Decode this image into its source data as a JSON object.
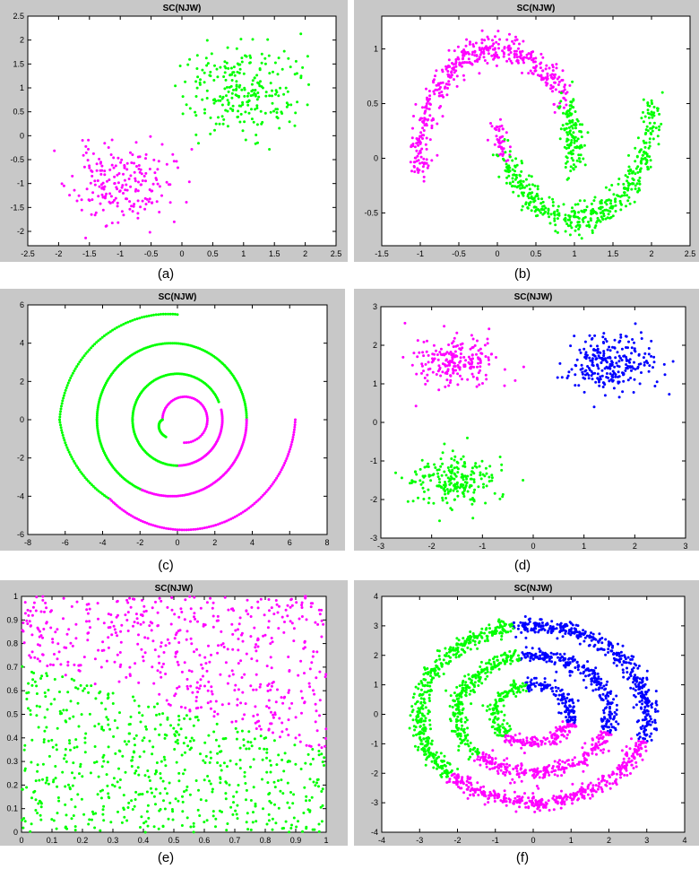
{
  "colors": {
    "magenta": "#ff00ff",
    "green": "#00ff00",
    "blue": "#0000ff",
    "frame_bg": "#c8c8c8",
    "plot_bg": "#ffffff"
  },
  "captions": {
    "a": "(a)",
    "b": "(b)",
    "c": "(c)",
    "d": "(d)",
    "e": "(e)",
    "f": "(f)"
  },
  "chart_data": [
    {
      "id": "a",
      "type": "scatter",
      "title": "SC(NJW)",
      "xlim": [
        -2.5,
        2.5
      ],
      "ylim": [
        -2.3,
        2.5
      ],
      "xticks": [
        "-2.5",
        "-2",
        "-1.5",
        "-1",
        "-0.5",
        "0",
        "0.5",
        "1",
        "1.5",
        "2",
        "2.5"
      ],
      "yticks": [
        "-2",
        "-1.5",
        "-1",
        "-0.5",
        "0",
        "0.5",
        "1",
        "1.5",
        "2",
        "2.5"
      ],
      "series": [
        {
          "color": "magenta",
          "gen": "gauss",
          "center": [
            -1.0,
            -1.0
          ],
          "spread": [
            0.4,
            0.4
          ],
          "count": 200,
          "seed": 11
        },
        {
          "color": "green",
          "gen": "gauss",
          "center": [
            1.0,
            0.95
          ],
          "spread": [
            0.45,
            0.45
          ],
          "count": 250,
          "seed": 12
        }
      ]
    },
    {
      "id": "b",
      "type": "scatter",
      "title": "SC(NJW)",
      "xlim": [
        -1.5,
        2.5
      ],
      "ylim": [
        -0.8,
        1.3
      ],
      "xticks": [
        "-1.5",
        "-1",
        "-0.5",
        "0",
        "0.5",
        "1",
        "1.5",
        "2",
        "2.5"
      ],
      "yticks": [
        "-0.5",
        "0",
        "0.5",
        "1"
      ],
      "series": [
        {
          "color": "magenta",
          "gen": "moon",
          "cx": 0,
          "cy": 0,
          "r": 1,
          "t0": 0.5,
          "t1": 3.3,
          "noise": 0.07,
          "count": 450,
          "seed": 21
        },
        {
          "color": "magenta",
          "gen": "moon",
          "cx": 1,
          "cy": 0.45,
          "r": 1,
          "t0": 3.3,
          "t1": 3.58,
          "noise": 0.05,
          "count": 45,
          "seed": 22
        },
        {
          "color": "green",
          "gen": "moon",
          "cx": 0,
          "cy": 0,
          "r": 1,
          "t0": -0.05,
          "t1": 0.5,
          "noise": 0.07,
          "count": 130,
          "seed": 23
        },
        {
          "color": "green",
          "gen": "moon",
          "cx": 1,
          "cy": 0.45,
          "r": 1,
          "t0": 3.58,
          "t1": 6.35,
          "noise": 0.07,
          "count": 450,
          "seed": 24
        }
      ]
    },
    {
      "id": "c",
      "type": "scatter",
      "title": "SC(NJW)",
      "xlim": [
        -8,
        8
      ],
      "ylim": [
        -6,
        6
      ],
      "xticks": [
        "-8",
        "-6",
        "-4",
        "-2",
        "0",
        "2",
        "4",
        "6",
        "8"
      ],
      "yticks": [
        "-6",
        "-4",
        "-2",
        "0",
        "2",
        "4",
        "6"
      ],
      "series": [
        {
          "color": "green",
          "gen": "arc",
          "cx": 0,
          "cy": 0,
          "r0": 5.5,
          "r1": 6.3,
          "t0": 1.5708,
          "t1": 3.1416,
          "count": 70
        },
        {
          "color": "green",
          "gen": "arc",
          "cx": 0,
          "cy": 0,
          "r0": 6.3,
          "r1": 5.5,
          "t0": 3.1416,
          "t1": 4.0,
          "count": 40
        },
        {
          "color": "magenta",
          "gen": "arc",
          "cx": 0,
          "cy": 0,
          "r0": 5.5,
          "r1": 6.3,
          "t0": 4.0,
          "t1": 6.2832,
          "count": 110
        },
        {
          "color": "green",
          "gen": "arc",
          "cx": -0.3,
          "cy": 0,
          "r0": 4.0,
          "r1": 4.0,
          "t0": 0.0,
          "t1": 3.1416,
          "count": 120
        },
        {
          "color": "green",
          "gen": "arc",
          "cx": -0.3,
          "cy": 0,
          "r0": 4.0,
          "r1": 4.0,
          "t0": 3.1416,
          "t1": 4.3,
          "count": 45
        },
        {
          "color": "magenta",
          "gen": "arc",
          "cx": -0.3,
          "cy": 0,
          "r0": 4.0,
          "r1": 4.0,
          "t0": 4.3,
          "t1": 6.2832,
          "count": 80
        },
        {
          "color": "green",
          "gen": "arc",
          "cx": 0,
          "cy": 0,
          "r0": 2.4,
          "r1": 2.4,
          "t0": 0.4,
          "t1": 3.1416,
          "count": 70
        },
        {
          "color": "magenta",
          "gen": "arc",
          "cx": 0,
          "cy": 0,
          "r0": 2.4,
          "r1": 2.4,
          "t0": 4.7,
          "t1": 6.5,
          "count": 50
        },
        {
          "color": "green",
          "gen": "arc",
          "cx": 0,
          "cy": 0,
          "r0": 2.4,
          "r1": 2.4,
          "t0": 3.1416,
          "t1": 4.7,
          "count": 40
        },
        {
          "color": "magenta",
          "gen": "arc",
          "cx": 0.4,
          "cy": 0,
          "r0": 1.2,
          "r1": 1.2,
          "t0": -0.2,
          "t1": 3.1416,
          "count": 40
        },
        {
          "color": "magenta",
          "gen": "arc",
          "cx": 0.4,
          "cy": 0,
          "r0": 1.2,
          "r1": 1.2,
          "t0": -1.6,
          "t1": -0.2,
          "count": 15
        },
        {
          "color": "green",
          "gen": "arc",
          "cx": -0.6,
          "cy": 0,
          "r0": 0.2,
          "r1": 0.9,
          "t0": 3.1416,
          "t1": 4.7,
          "count": 25
        }
      ]
    },
    {
      "id": "d",
      "type": "scatter",
      "title": "SC(NJW)",
      "xlim": [
        -3,
        3
      ],
      "ylim": [
        -3,
        3
      ],
      "xticks": [
        "-3",
        "-2",
        "-1",
        "0",
        "1",
        "2",
        "3"
      ],
      "yticks": [
        "-3",
        "-2",
        "-1",
        "0",
        "1",
        "2",
        "3"
      ],
      "series": [
        {
          "color": "magenta",
          "gen": "gauss",
          "center": [
            -1.5,
            1.6
          ],
          "spread": [
            0.4,
            0.35
          ],
          "count": 200,
          "seed": 41
        },
        {
          "color": "blue",
          "gen": "gauss",
          "center": [
            1.5,
            1.55
          ],
          "spread": [
            0.45,
            0.35
          ],
          "count": 250,
          "seed": 42
        },
        {
          "color": "green",
          "gen": "gauss",
          "center": [
            -1.55,
            -1.55
          ],
          "spread": [
            0.4,
            0.35
          ],
          "count": 220,
          "seed": 43
        }
      ]
    },
    {
      "id": "e",
      "type": "scatter",
      "title": "SC(NJW)",
      "xlim": [
        0,
        1
      ],
      "ylim": [
        0,
        1
      ],
      "xticks": [
        "0",
        "0.1",
        "0.2",
        "0.3",
        "0.4",
        "0.5",
        "0.6",
        "0.7",
        "0.8",
        "0.9",
        "1"
      ],
      "yticks": [
        "0",
        "0.1",
        "0.2",
        "0.3",
        "0.4",
        "0.5",
        "0.6",
        "0.7",
        "0.8",
        "0.9",
        "1"
      ],
      "series": [
        {
          "color": "magenta",
          "gen": "uniform_split",
          "side": "above",
          "count": 560,
          "seed": 51
        },
        {
          "color": "green",
          "gen": "uniform_split",
          "side": "below",
          "count": 560,
          "seed": 51
        }
      ]
    },
    {
      "id": "f",
      "type": "scatter",
      "title": "SC(NJW)",
      "xlim": [
        -4,
        4
      ],
      "ylim": [
        -4,
        4
      ],
      "xticks": [
        "-4",
        "-3",
        "-2",
        "-1",
        "0",
        "1",
        "2",
        "3",
        "4"
      ],
      "yticks": [
        "-4",
        "-3",
        "-2",
        "-1",
        "0",
        "1",
        "2",
        "3",
        "4"
      ],
      "series": [
        {
          "color": "blue",
          "gen": "ring",
          "r": 3.0,
          "t0": -0.3,
          "t1": 1.75,
          "noise": 0.13,
          "count": 400,
          "seed": 61
        },
        {
          "color": "green",
          "gen": "ring",
          "r": 3.0,
          "t0": 1.75,
          "t1": 3.9,
          "noise": 0.13,
          "count": 400,
          "seed": 62
        },
        {
          "color": "magenta",
          "gen": "ring",
          "r": 3.0,
          "t0": 3.9,
          "t1": 5.98,
          "noise": 0.13,
          "count": 400,
          "seed": 63
        },
        {
          "color": "blue",
          "gen": "ring",
          "r": 2.0,
          "t0": -0.3,
          "t1": 1.75,
          "noise": 0.12,
          "count": 260,
          "seed": 64
        },
        {
          "color": "green",
          "gen": "ring",
          "r": 2.0,
          "t0": 1.75,
          "t1": 3.9,
          "noise": 0.12,
          "count": 260,
          "seed": 65
        },
        {
          "color": "magenta",
          "gen": "ring",
          "r": 2.0,
          "t0": 3.9,
          "t1": 5.98,
          "noise": 0.12,
          "count": 260,
          "seed": 66
        },
        {
          "color": "blue",
          "gen": "ring",
          "r": 1.0,
          "t0": -0.3,
          "t1": 1.75,
          "noise": 0.11,
          "count": 130,
          "seed": 67
        },
        {
          "color": "green",
          "gen": "ring",
          "r": 1.0,
          "t0": 1.75,
          "t1": 3.9,
          "noise": 0.11,
          "count": 130,
          "seed": 68
        },
        {
          "color": "magenta",
          "gen": "ring",
          "r": 1.0,
          "t0": 3.9,
          "t1": 5.98,
          "noise": 0.11,
          "count": 130,
          "seed": 69
        }
      ]
    }
  ]
}
